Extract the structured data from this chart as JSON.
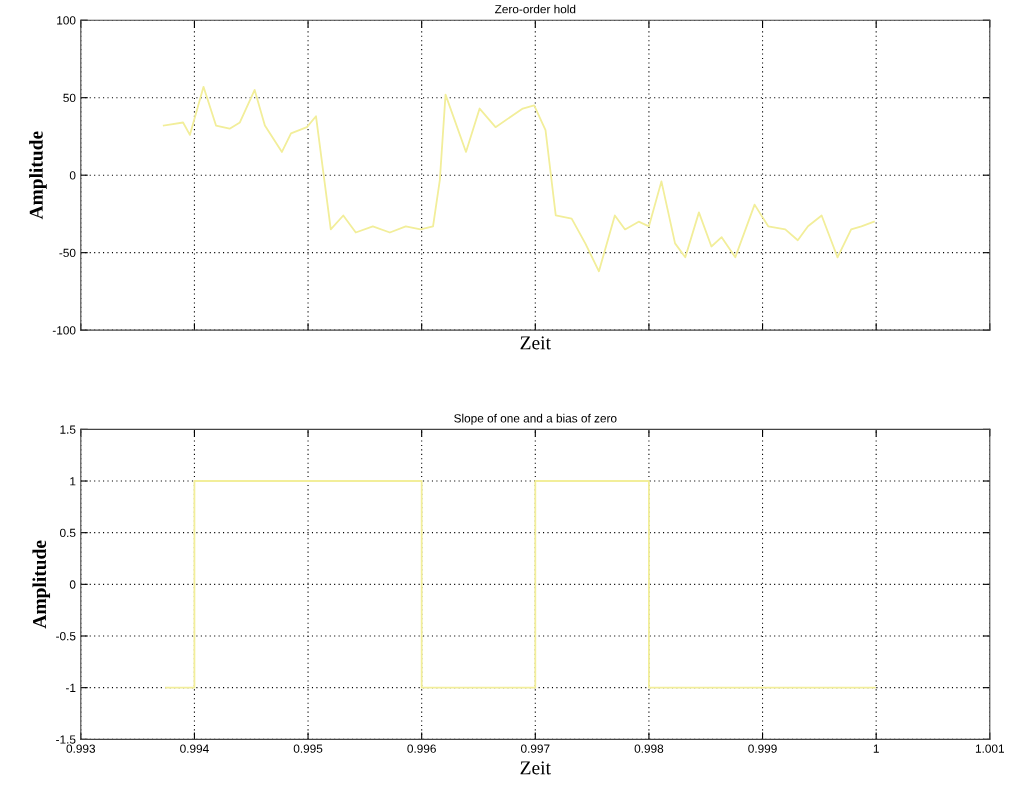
{
  "chart_data": [
    {
      "type": "line",
      "title": "Zero-order hold",
      "xlabel": "Zeit",
      "ylabel": "Amplitude",
      "xlim": [
        0.993,
        1.001
      ],
      "ylim": [
        -100,
        100
      ],
      "xticks": [
        0.993,
        0.994,
        0.995,
        0.996,
        0.997,
        0.998,
        0.999,
        1,
        1.001
      ],
      "yticks": [
        -100,
        -50,
        0,
        50,
        100
      ],
      "tick_labels": "y",
      "grid": true,
      "series": [
        {
          "color": "#f2ee9a",
          "x": [
            0.99373,
            0.9939,
            0.99396,
            0.99408,
            0.99419,
            0.99431,
            0.9944,
            0.99453,
            0.99462,
            0.99477,
            0.99485,
            0.99499,
            0.99507,
            0.9952,
            0.99531,
            0.99542,
            0.99557,
            0.99572,
            0.99586,
            0.99599,
            0.9961,
            0.99616,
            0.99621,
            0.99639,
            0.99651,
            0.99665,
            0.99689,
            0.99699,
            0.99709,
            0.99718,
            0.99732,
            0.99744,
            0.99756,
            0.9977,
            0.99779,
            0.99791,
            0.998,
            0.99811,
            0.99823,
            0.99832,
            0.99844,
            0.99855,
            0.99864,
            0.99876,
            0.99893,
            0.99905,
            0.9992,
            0.99931,
            0.9994,
            0.99952,
            0.99966,
            0.99978,
            0.99987,
            0.99998
          ],
          "values": [
            32,
            34,
            26,
            57,
            32,
            30,
            34,
            55,
            32,
            15,
            27,
            31,
            38,
            -35,
            -26,
            -37,
            -33,
            -37,
            -33,
            -35,
            -33,
            -3,
            52,
            15,
            43,
            31,
            43,
            45,
            29,
            -26,
            -28,
            -44,
            -62,
            -26,
            -35,
            -30,
            -33,
            -4,
            -44,
            -53,
            -24,
            -46,
            -40,
            -53,
            -19,
            -33,
            -35,
            -42,
            -33,
            -26,
            -53,
            -35,
            -33,
            -30
          ]
        }
      ]
    },
    {
      "type": "step",
      "title": "Slope of one and a bias of zero",
      "xlabel": "Zeit",
      "ylabel": "Amplitude",
      "xlim": [
        0.993,
        1.001
      ],
      "ylim": [
        -1.5,
        1.5
      ],
      "xticks": [
        0.993,
        0.994,
        0.995,
        0.996,
        0.997,
        0.998,
        0.999,
        1,
        1.001
      ],
      "yticks": [
        -1.5,
        -1,
        -0.5,
        0,
        0.5,
        1,
        1.5
      ],
      "grid": true,
      "series": [
        {
          "color": "#f2ee9a",
          "x": [
            0.99375,
            0.994,
            0.996,
            0.997,
            0.998,
            0.99999
          ],
          "values": [
            -1,
            1,
            -1,
            1,
            -1,
            -1
          ]
        }
      ]
    }
  ]
}
